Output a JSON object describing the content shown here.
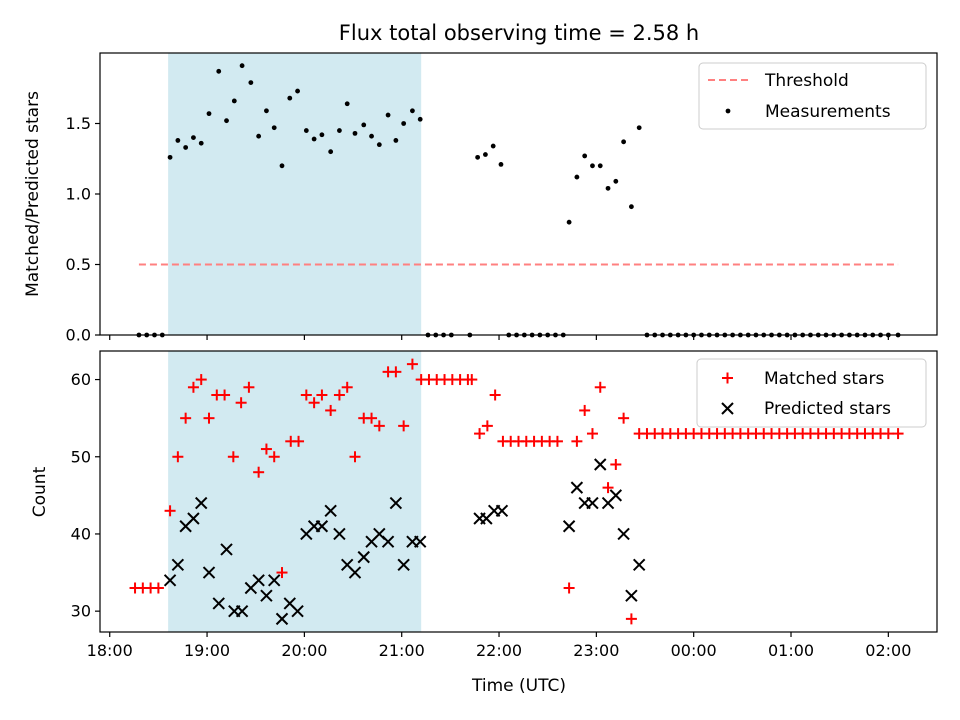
{
  "title": "Flux total observing time = 2.58 h",
  "colors": {
    "threshold": "#ff8080",
    "measurement": "#000000",
    "matched": "#ff0000",
    "predicted": "#000000",
    "shade": "#add8e6"
  },
  "chart_data": [
    {
      "type": "scatter",
      "ylabel": "Matched/Predicted stars",
      "ylim": [
        0,
        2.0
      ],
      "yticks": [
        0.0,
        0.5,
        1.0,
        1.5
      ],
      "ytick_labels": [
        "0.0",
        "0.5",
        "1.0",
        "1.5"
      ],
      "xlim": [
        17.9,
        26.5
      ],
      "shaded_span": [
        18.6,
        21.2
      ],
      "threshold": {
        "name": "Threshold",
        "value": 0.5,
        "x_range": [
          18.3,
          26.1
        ]
      },
      "legend": [
        "Threshold",
        "Measurements"
      ],
      "legend_position": "top-right",
      "series": [
        {
          "name": "Measurements",
          "x": [
            18.3,
            18.38,
            18.46,
            18.54,
            18.62,
            18.7,
            18.78,
            18.86,
            18.94,
            19.02,
            19.12,
            19.2,
            19.28,
            19.36,
            19.45,
            19.53,
            19.61,
            19.69,
            19.77,
            19.85,
            19.93,
            20.02,
            20.1,
            20.18,
            20.27,
            20.36,
            20.44,
            20.52,
            20.61,
            20.69,
            20.77,
            20.86,
            20.94,
            21.02,
            21.11,
            21.19,
            21.27,
            21.35,
            21.43,
            21.51,
            21.7,
            21.78,
            21.86,
            21.94,
            22.02,
            22.1,
            22.18,
            22.26,
            22.34,
            22.42,
            22.5,
            22.58,
            22.66,
            22.72,
            22.8,
            22.88,
            22.96,
            23.04,
            23.12,
            23.2,
            23.28,
            23.36,
            23.44,
            23.52,
            23.6,
            23.68,
            23.76,
            23.84,
            23.92,
            24.0,
            24.08,
            24.16,
            24.24,
            24.32,
            24.4,
            24.48,
            24.56,
            24.64,
            24.72,
            24.8,
            24.88,
            24.96,
            25.04,
            25.12,
            25.2,
            25.28,
            25.36,
            25.44,
            25.52,
            25.6,
            25.68,
            25.76,
            25.84,
            25.92,
            26.0,
            26.1
          ],
          "y": [
            0,
            0,
            0,
            0,
            1.26,
            1.38,
            1.33,
            1.4,
            1.36,
            1.57,
            1.87,
            1.52,
            1.66,
            1.91,
            1.79,
            1.41,
            1.59,
            1.47,
            1.2,
            1.68,
            1.73,
            1.45,
            1.39,
            1.42,
            1.3,
            1.45,
            1.64,
            1.43,
            1.49,
            1.41,
            1.35,
            1.56,
            1.38,
            1.5,
            1.59,
            1.53,
            0,
            0,
            0,
            0,
            0,
            1.26,
            1.28,
            1.34,
            1.21,
            0,
            0,
            0,
            0,
            0,
            0,
            0,
            0,
            0.8,
            1.12,
            1.27,
            1.2,
            1.2,
            1.04,
            1.09,
            1.37,
            0.91,
            1.47,
            0,
            0,
            0,
            0,
            0,
            0,
            0,
            0,
            0,
            0,
            0,
            0,
            0,
            0,
            0,
            0,
            0,
            0,
            0,
            0,
            0,
            0,
            0,
            0,
            0,
            0,
            0,
            0,
            0,
            0,
            0,
            0,
            0
          ]
        }
      ]
    },
    {
      "type": "scatter",
      "xlabel": "Time (UTC)",
      "ylabel": "Count",
      "ylim": [
        27.3,
        63.7
      ],
      "yticks": [
        30,
        40,
        50,
        60
      ],
      "ytick_labels": [
        "30",
        "40",
        "50",
        "60"
      ],
      "xlim": [
        17.9,
        26.5
      ],
      "xticks": [
        18,
        19,
        20,
        21,
        22,
        23,
        24,
        25,
        26
      ],
      "xtick_labels": [
        "18:00",
        "19:00",
        "20:00",
        "21:00",
        "22:00",
        "23:00",
        "00:00",
        "01:00",
        "02:00"
      ],
      "shaded_span": [
        18.6,
        21.2
      ],
      "legend": [
        "Matched stars",
        "Predicted stars"
      ],
      "legend_position": "top-right",
      "series": [
        {
          "name": "Matched stars",
          "marker": "plus",
          "x": [
            18.26,
            18.34,
            18.42,
            18.5,
            18.62,
            18.7,
            18.78,
            18.86,
            18.94,
            19.02,
            19.1,
            19.18,
            19.27,
            19.35,
            19.43,
            19.53,
            19.61,
            19.69,
            19.77,
            19.86,
            19.94,
            20.02,
            20.1,
            20.18,
            20.27,
            20.36,
            20.44,
            20.52,
            20.61,
            20.69,
            20.77,
            20.86,
            20.94,
            21.02,
            21.11,
            21.2,
            21.28,
            21.36,
            21.44,
            21.52,
            21.6,
            21.68,
            21.72,
            21.8,
            21.88,
            21.96,
            22.04,
            22.12,
            22.2,
            22.28,
            22.36,
            22.44,
            22.52,
            22.6,
            22.72,
            22.8,
            22.88,
            22.96,
            23.04,
            23.12,
            23.2,
            23.28,
            23.36,
            23.44,
            23.52,
            23.6,
            23.68,
            23.76,
            23.84,
            23.92,
            24.0,
            24.08,
            24.16,
            24.24,
            24.32,
            24.4,
            24.48,
            24.56,
            24.64,
            24.72,
            24.8,
            24.88,
            24.96,
            25.04,
            25.12,
            25.2,
            25.28,
            25.36,
            25.44,
            25.52,
            25.6,
            25.68,
            25.76,
            25.84,
            25.92,
            26.0,
            26.1
          ],
          "y": [
            33,
            33,
            33,
            33,
            43,
            50,
            55,
            59,
            60,
            55,
            58,
            58,
            50,
            57,
            59,
            48,
            51,
            50,
            35,
            52,
            52,
            58,
            57,
            58,
            56,
            58,
            59,
            50,
            55,
            55,
            54,
            61,
            61,
            54,
            62,
            60,
            60,
            60,
            60,
            60,
            60,
            60,
            60,
            53,
            54,
            58,
            52,
            52,
            52,
            52,
            52,
            52,
            52,
            52,
            33,
            52,
            56,
            53,
            59,
            46,
            49,
            55,
            29,
            53,
            53,
            53,
            53,
            53,
            53,
            53,
            53,
            53,
            53,
            53,
            53,
            53,
            53,
            53,
            53,
            53,
            53,
            53,
            53,
            53,
            53,
            53,
            53,
            53,
            53,
            53,
            53,
            53,
            53,
            53,
            53,
            53,
            53
          ]
        },
        {
          "name": "Predicted stars",
          "marker": "x",
          "x": [
            18.62,
            18.7,
            18.78,
            18.86,
            18.94,
            19.02,
            19.12,
            19.2,
            19.28,
            19.36,
            19.45,
            19.53,
            19.61,
            19.69,
            19.77,
            19.85,
            19.93,
            20.02,
            20.1,
            20.18,
            20.27,
            20.36,
            20.44,
            20.52,
            20.61,
            20.69,
            20.77,
            20.86,
            20.94,
            21.02,
            21.11,
            21.19,
            21.8,
            21.87,
            21.95,
            22.03,
            22.72,
            22.8,
            22.88,
            22.96,
            23.04,
            23.12,
            23.2,
            23.28,
            23.36,
            23.44
          ],
          "y": [
            34,
            36,
            41,
            42,
            44,
            35,
            31,
            38,
            30,
            30,
            33,
            34,
            32,
            34,
            29,
            31,
            30,
            40,
            41,
            41,
            43,
            40,
            36,
            35,
            37,
            39,
            40,
            39,
            44,
            36,
            39,
            39,
            42,
            42,
            43,
            43,
            41,
            46,
            44,
            44,
            49,
            44,
            45,
            40,
            32,
            36
          ]
        }
      ]
    }
  ]
}
